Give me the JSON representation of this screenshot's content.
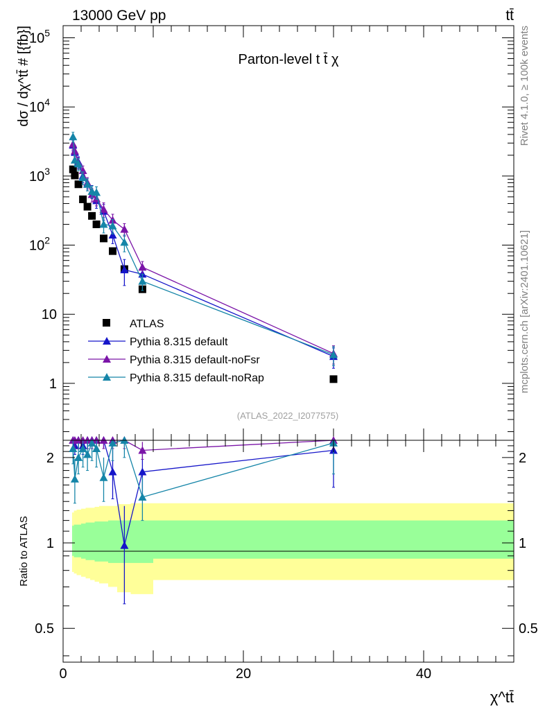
{
  "header": {
    "energy_label": "13000 GeV pp",
    "process_label": "tt̄"
  },
  "side_text": {
    "rivet": "Rivet 4.1.0, ≥ 100k events",
    "mcplots": "mcplots.cern.ch [arXiv:2401.10621]"
  },
  "colors": {
    "atlas": "#000000",
    "default": "#1515c9",
    "noFsr": "#7b15a8",
    "noRap": "#1585a8",
    "band_outer": "#ffff99",
    "band_inner": "#99ff99"
  },
  "chart_data": [
    {
      "type": "scatter",
      "title": "Parton-level t t̄ χ",
      "ylabel": "dσ / dχ^tt̄ # [{fb}]",
      "xlabel": "χ^tt̄",
      "yscale": "log",
      "xlim": [
        0,
        50
      ],
      "ylim": [
        0.15,
        150000
      ],
      "yticks": [
        {
          "value": 1,
          "label": "1"
        },
        {
          "value": 10,
          "label": "10"
        },
        {
          "value": 100,
          "label": "10",
          "exp": "2"
        },
        {
          "value": 1000,
          "label": "10",
          "exp": "3"
        },
        {
          "value": 10000,
          "label": "10",
          "exp": "4"
        },
        {
          "value": 100000,
          "label": "10",
          "exp": "5"
        }
      ],
      "watermark": "(ATLAS_2022_I2077575)",
      "legend_position": "lower-left",
      "series": [
        {
          "name": "ATLAS",
          "key": "atlas",
          "marker": "square",
          "x": [
            1.1,
            1.3,
            1.7,
            2.2,
            2.7,
            3.2,
            3.7,
            4.5,
            5.5,
            6.8,
            8.8,
            30.0
          ],
          "y": [
            1250,
            1020,
            760,
            460,
            360,
            265,
            200,
            125,
            82,
            45,
            23,
            1.15
          ],
          "err": [
            0,
            0,
            0,
            0,
            0,
            0,
            0,
            0,
            0,
            0,
            0,
            0
          ]
        },
        {
          "name": "Pythia 8.315 default",
          "key": "default",
          "marker": "triangle",
          "x": [
            1.1,
            1.3,
            1.7,
            2.2,
            2.7,
            3.2,
            3.7,
            4.5,
            5.5,
            6.8,
            8.8,
            30.0
          ],
          "y": [
            2800,
            2200,
            1600,
            1000,
            760,
            600,
            440,
            310,
            140,
            44,
            38,
            2.45
          ],
          "err": [
            500,
            400,
            300,
            200,
            150,
            130,
            100,
            80,
            35,
            18,
            8,
            0.8
          ]
        },
        {
          "name": "Pythia 8.315 default-noFsr",
          "key": "noFsr",
          "marker": "triangle",
          "x": [
            1.1,
            1.3,
            1.7,
            2.2,
            2.7,
            3.2,
            3.7,
            4.5,
            5.5,
            6.8,
            8.8,
            30.0
          ],
          "y": [
            2900,
            2300,
            1550,
            1200,
            800,
            540,
            470,
            330,
            230,
            170,
            48,
            2.7
          ],
          "err": [
            500,
            400,
            300,
            200,
            150,
            120,
            100,
            80,
            50,
            35,
            10,
            0.8
          ]
        },
        {
          "name": "Pythia 8.315 default-noRap",
          "key": "noRap",
          "marker": "triangle",
          "x": [
            1.1,
            1.3,
            1.7,
            2.2,
            2.7,
            3.2,
            3.7,
            4.5,
            5.5,
            6.8,
            8.8,
            30.0
          ],
          "y": [
            3700,
            1700,
            1500,
            950,
            760,
            600,
            580,
            200,
            190,
            110,
            30,
            2.6
          ],
          "err": [
            600,
            300,
            300,
            200,
            150,
            120,
            120,
            50,
            45,
            30,
            8,
            0.8
          ]
        }
      ]
    },
    {
      "type": "scatter",
      "title": "",
      "ylabel": "Ratio to ATLAS",
      "xlabel": "χ^tt̄",
      "yscale": "log",
      "xlim": [
        0,
        50
      ],
      "ylim": [
        0.38,
        2.3
      ],
      "yticks": [
        {
          "value": 0.5,
          "label": "0.5"
        },
        {
          "value": 1,
          "label": "1"
        },
        {
          "value": 2,
          "label": "2"
        }
      ],
      "xticks": [
        {
          "value": 0,
          "label": "0"
        },
        {
          "value": 20,
          "label": "20"
        },
        {
          "value": 40,
          "label": "40"
        }
      ],
      "bands": {
        "edges": [
          1.0,
          1.2,
          1.5,
          2.0,
          2.5,
          3.0,
          3.5,
          4.0,
          5.0,
          6.0,
          7.5,
          10.0,
          50.0
        ],
        "outer_hi": [
          1.28,
          1.3,
          1.31,
          1.32,
          1.33,
          1.33,
          1.34,
          1.35,
          1.35,
          1.37,
          1.38,
          1.38
        ],
        "outer_lo": [
          0.79,
          0.78,
          0.77,
          0.76,
          0.75,
          0.74,
          0.73,
          0.72,
          0.7,
          0.67,
          0.66,
          0.74
        ],
        "inner_hi": [
          1.15,
          1.16,
          1.16,
          1.17,
          1.18,
          1.18,
          1.19,
          1.19,
          1.2,
          1.2,
          1.2,
          1.2
        ],
        "inner_lo": [
          0.9,
          0.89,
          0.89,
          0.88,
          0.87,
          0.87,
          0.86,
          0.86,
          0.85,
          0.85,
          0.85,
          0.88
        ]
      },
      "series": [
        {
          "name": "Pythia 8.315 default",
          "key": "default",
          "x": [
            1.1,
            1.3,
            1.7,
            2.2,
            2.7,
            3.2,
            3.7,
            4.5,
            5.5,
            6.8,
            8.8,
            30.0
          ],
          "y": [
            2.3,
            2.2,
            2.3,
            2.2,
            2.3,
            2.3,
            2.3,
            2.3,
            1.78,
            0.98,
            1.78,
            2.12
          ],
          "err": [
            0.15,
            0.15,
            0.15,
            0.15,
            0.15,
            0.15,
            0.15,
            0.15,
            0.35,
            0.37,
            0.35,
            0.55
          ]
        },
        {
          "name": "Pythia 8.315 default-noFsr",
          "key": "noFsr",
          "x": [
            1.1,
            1.3,
            1.7,
            2.2,
            2.7,
            3.2,
            3.7,
            4.5,
            5.5,
            6.8,
            8.8,
            30.0
          ],
          "y": [
            2.3,
            2.3,
            2.3,
            2.3,
            2.3,
            2.3,
            2.3,
            2.3,
            2.3,
            2.3,
            2.12,
            2.3
          ],
          "err": [
            0.15,
            0.15,
            0.15,
            0.15,
            0.15,
            0.15,
            0.15,
            0.15,
            0.15,
            0.15,
            0.15,
            0.15
          ]
        },
        {
          "name": "Pythia 8.315 default-noRap",
          "key": "noRap",
          "x": [
            1.1,
            1.3,
            1.7,
            2.2,
            2.7,
            3.2,
            3.7,
            4.5,
            5.5,
            6.8,
            8.8,
            30.0
          ],
          "y": [
            2.15,
            1.68,
            2.0,
            2.15,
            2.05,
            2.25,
            2.15,
            1.7,
            2.25,
            2.3,
            1.45,
            2.25
          ],
          "err": [
            0.25,
            0.3,
            0.25,
            0.3,
            0.25,
            0.3,
            0.3,
            0.3,
            0.3,
            0.3,
            0.25,
            0.5
          ]
        }
      ]
    }
  ]
}
